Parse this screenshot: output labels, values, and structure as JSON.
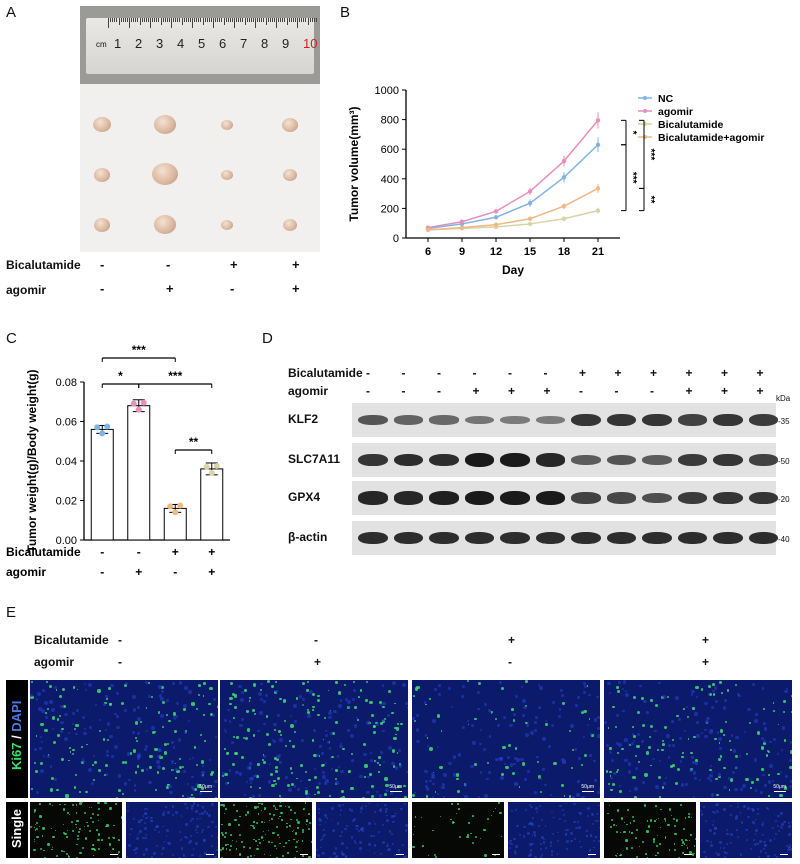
{
  "panels": {
    "A": "A",
    "B": "B",
    "C": "C",
    "D": "D",
    "E": "E"
  },
  "ruler": {
    "unit": "cm",
    "numbers": [
      "1",
      "2",
      "3",
      "4",
      "5",
      "6",
      "7",
      "8",
      "9",
      "10"
    ]
  },
  "treatments": {
    "bicalutamide_label": "Bicalutamide",
    "agomir_label": "agomir",
    "bicalutamide_signs": [
      "-",
      "-",
      "+",
      "+"
    ],
    "agomir_signs": [
      "-",
      "+",
      "-",
      "+"
    ]
  },
  "colors": {
    "nc": "#7fb3e6",
    "agomir": "#e68fb8",
    "bicalutamide": "#d9d3a6",
    "combo": "#f0b883",
    "dapi": "#0b1a6b",
    "ki67": "#3be070"
  },
  "chart_data": [
    {
      "id": "B",
      "type": "line",
      "xlabel": "Day",
      "ylabel": "Tumor volume(mm³)",
      "x": [
        6,
        9,
        12,
        15,
        18,
        21
      ],
      "ylim": [
        0,
        1000
      ],
      "yticks": [
        0,
        200,
        400,
        600,
        800,
        1000
      ],
      "series": [
        {
          "name": "NC",
          "values": [
            65,
            95,
            140,
            235,
            410,
            630
          ],
          "err": [
            8,
            10,
            12,
            25,
            35,
            50
          ]
        },
        {
          "name": "agomir",
          "values": [
            70,
            110,
            180,
            315,
            520,
            795
          ],
          "err": [
            8,
            10,
            15,
            25,
            35,
            55
          ]
        },
        {
          "name": "Bicalutamide",
          "values": [
            55,
            65,
            75,
            95,
            130,
            185
          ],
          "err": [
            5,
            6,
            6,
            8,
            12,
            20
          ]
        },
        {
          "name": "Bicalutamide+agomir",
          "values": [
            55,
            70,
            90,
            130,
            215,
            335
          ],
          "err": [
            5,
            6,
            8,
            12,
            20,
            30
          ]
        }
      ],
      "significance": [
        "*",
        "***",
        "***",
        "**"
      ],
      "legend_position": "top-right"
    },
    {
      "id": "C",
      "type": "bar",
      "ylabel": "Tumor weight(g)/Body weight(g)",
      "ylim": [
        0,
        0.08
      ],
      "yticks": [
        "0.00",
        "0.02",
        "0.04",
        "0.06",
        "0.08"
      ],
      "values": [
        0.056,
        0.068,
        0.016,
        0.036
      ],
      "err": [
        0.002,
        0.003,
        0.002,
        0.003
      ],
      "significance": [
        "***",
        "*",
        "***",
        "**"
      ]
    }
  ],
  "western": {
    "bicalutamide_label": "Bicalutamide",
    "agomir_label": "agomir",
    "bicalutamide_signs": [
      "-",
      "-",
      "-",
      "-",
      "-",
      "-",
      "+",
      "+",
      "+",
      "+",
      "+",
      "+"
    ],
    "agomir_signs": [
      "-",
      "-",
      "-",
      "+",
      "+",
      "+",
      "-",
      "-",
      "-",
      "+",
      "+",
      "+"
    ],
    "kda_label": "kDa",
    "blots": [
      {
        "name": "KLF2",
        "marker": "-35",
        "intensity": [
          0.55,
          0.45,
          0.4,
          0.3,
          0.25,
          0.25,
          0.8,
          0.8,
          0.8,
          0.7,
          0.8,
          0.75
        ]
      },
      {
        "name": "SLC7A11",
        "marker": "-50",
        "intensity": [
          0.8,
          0.85,
          0.85,
          1.0,
          1.0,
          0.9,
          0.5,
          0.55,
          0.5,
          0.75,
          0.8,
          0.7
        ]
      },
      {
        "name": "GPX4",
        "marker": "-20",
        "intensity": [
          0.9,
          0.9,
          0.95,
          1.0,
          1.0,
          1.0,
          0.7,
          0.65,
          0.6,
          0.75,
          0.8,
          0.8
        ]
      },
      {
        "name": "β-actin",
        "marker": "-40",
        "intensity": [
          0.85,
          0.85,
          0.85,
          0.85,
          0.85,
          0.85,
          0.85,
          0.85,
          0.85,
          0.85,
          0.85,
          0.85
        ]
      }
    ]
  },
  "microscopy": {
    "row1_label_ki67": "Ki67",
    "row1_label_sep": " / ",
    "row1_label_dapi": "DAPI",
    "row2_label": "Single",
    "scale": "50μm",
    "density": [
      0.55,
      0.75,
      0.12,
      0.45
    ]
  }
}
